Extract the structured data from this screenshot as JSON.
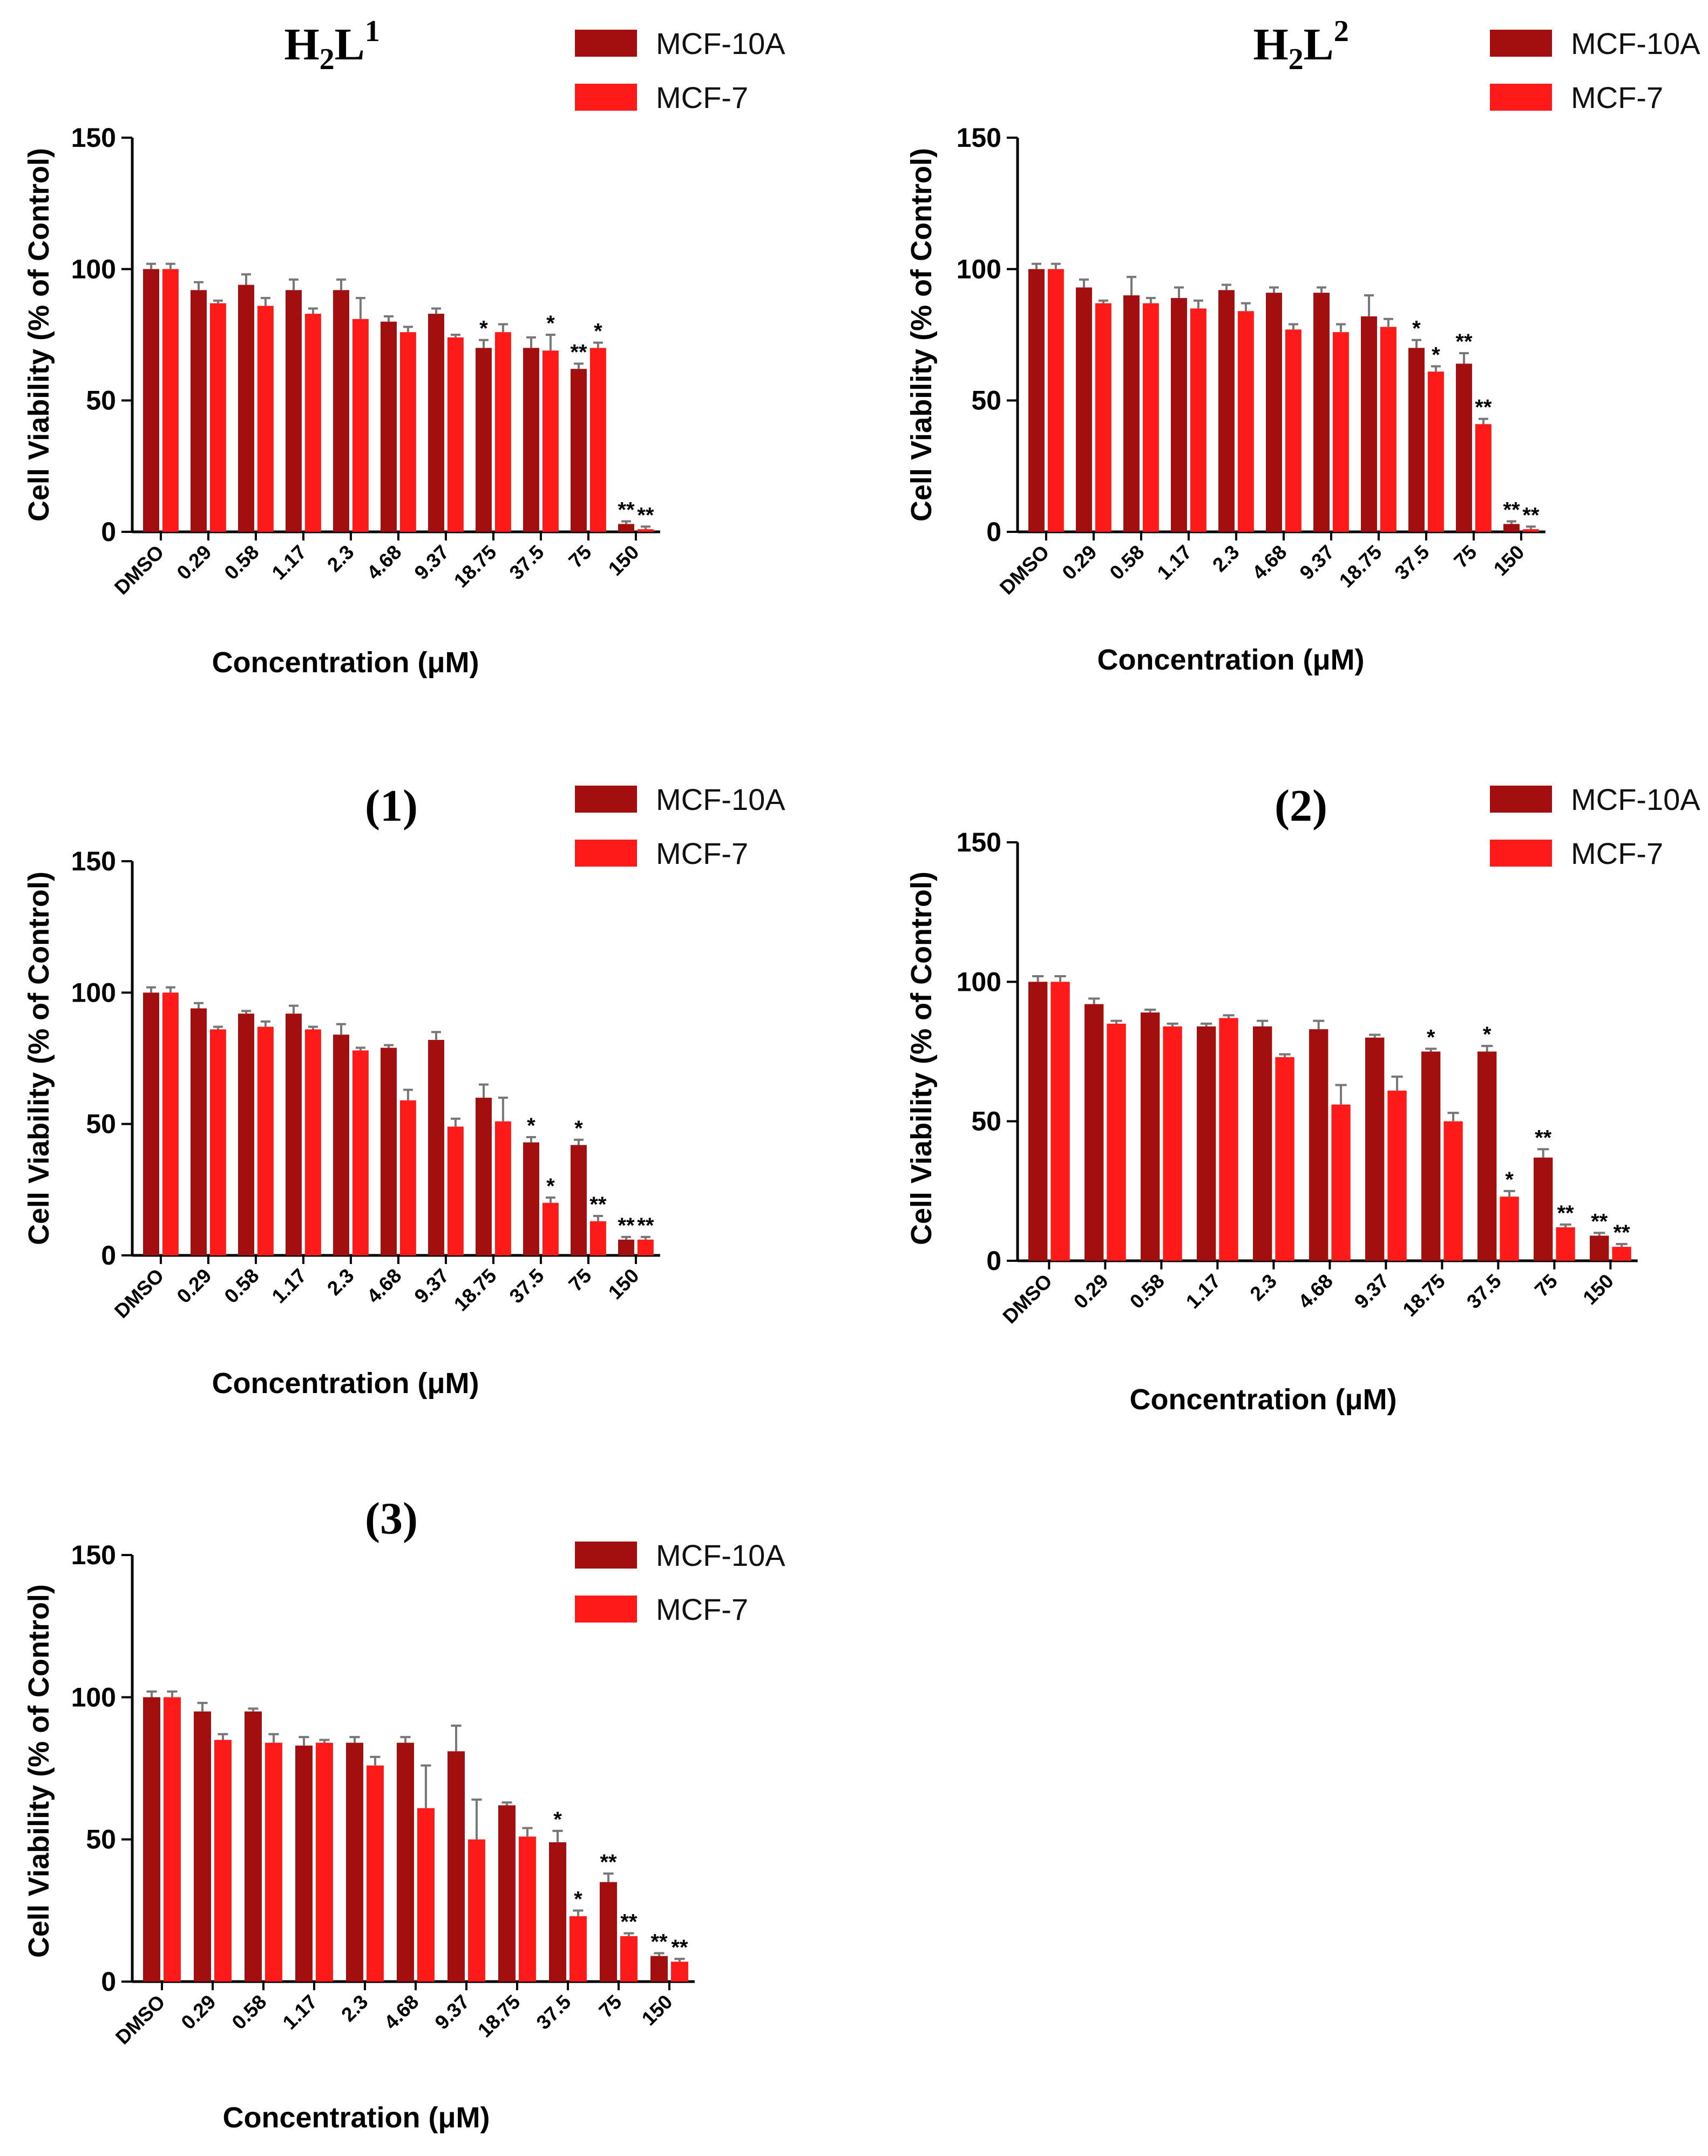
{
  "figure": {
    "x_label": "Concentration (μM)",
    "y_label": "Cell Viability (% of Control)",
    "legend": [
      "MCF-10A",
      "MCF-7"
    ],
    "colors": {
      "MCF-10A": "#a30f0f",
      "MCF-7": "#ff1a1a",
      "error_bar": "#777777"
    }
  },
  "chart_data": [
    {
      "type": "bar",
      "title": "H2L1",
      "title_main": "H",
      "title_sub": "2",
      "title_main2": "L",
      "title_sup": "1",
      "xlabel": "Concentration (μM)",
      "ylabel": "Cell Viability (% of Control)",
      "ylim": [
        0,
        150
      ],
      "yticks": [
        0,
        50,
        100,
        150
      ],
      "categories": [
        "DMSO",
        "0.29",
        "0.58",
        "1.17",
        "2.3",
        "4.68",
        "9.37",
        "18.75",
        "37.5",
        "75",
        "150"
      ],
      "series": [
        {
          "name": "MCF-10A",
          "values": [
            100,
            92,
            94,
            92,
            92,
            80,
            83,
            70,
            70,
            62,
            3
          ],
          "errors": [
            2,
            3,
            4,
            4,
            4,
            2,
            2,
            3,
            4,
            2,
            1
          ],
          "labels": [
            "",
            "",
            "",
            "",
            "",
            "",
            "",
            "*",
            "",
            "**",
            "**"
          ]
        },
        {
          "name": "MCF-7",
          "values": [
            100,
            87,
            86,
            83,
            81,
            76,
            74,
            76,
            69,
            70,
            1
          ],
          "errors": [
            2,
            1,
            3,
            2,
            8,
            2,
            1,
            3,
            6,
            2,
            1
          ],
          "labels": [
            "",
            "",
            "",
            "",
            "",
            "",
            "",
            "",
            "*",
            "*",
            "**"
          ]
        }
      ]
    },
    {
      "type": "bar",
      "title": "H2L2",
      "title_main": "H",
      "title_sub": "2",
      "title_main2": "L",
      "title_sup": "2",
      "xlabel": "Concentration (μM)",
      "ylabel": "Cell Viability (% of Control)",
      "ylim": [
        0,
        150
      ],
      "yticks": [
        0,
        50,
        100,
        150
      ],
      "categories": [
        "DMSO",
        "0.29",
        "0.58",
        "1.17",
        "2.3",
        "4.68",
        "9.37",
        "18.75",
        "37.5",
        "75",
        "150"
      ],
      "series": [
        {
          "name": "MCF-10A",
          "values": [
            100,
            93,
            90,
            89,
            92,
            91,
            91,
            82,
            70,
            64,
            3
          ],
          "errors": [
            2,
            3,
            7,
            4,
            2,
            2,
            2,
            8,
            3,
            4,
            1
          ],
          "labels": [
            "",
            "",
            "",
            "",
            "",
            "",
            "",
            "",
            "*",
            "**",
            "**"
          ]
        },
        {
          "name": "MCF-7",
          "values": [
            100,
            87,
            87,
            85,
            84,
            77,
            76,
            78,
            61,
            41,
            1
          ],
          "errors": [
            2,
            1,
            2,
            3,
            3,
            2,
            3,
            3,
            2,
            2,
            1
          ],
          "labels": [
            "",
            "",
            "",
            "",
            "",
            "",
            "",
            "",
            "*",
            "**",
            "**"
          ]
        }
      ]
    },
    {
      "type": "bar",
      "title": "(1)",
      "xlabel": "Concentration (μM)",
      "ylabel": "Cell Viability (% of Control)",
      "ylim": [
        0,
        150
      ],
      "yticks": [
        0,
        50,
        100,
        150
      ],
      "categories": [
        "DMSO",
        "0.29",
        "0.58",
        "1.17",
        "2.3",
        "4.68",
        "9.37",
        "18.75",
        "37.5",
        "75",
        "150"
      ],
      "series": [
        {
          "name": "MCF-10A",
          "values": [
            100,
            94,
            92,
            92,
            84,
            79,
            82,
            60,
            43,
            42,
            6
          ],
          "errors": [
            2,
            2,
            1,
            3,
            4,
            1,
            3,
            5,
            2,
            2,
            1
          ],
          "labels": [
            "",
            "",
            "",
            "",
            "",
            "",
            "",
            "",
            "*",
            "*",
            "**"
          ]
        },
        {
          "name": "MCF-7",
          "values": [
            100,
            86,
            87,
            86,
            78,
            59,
            49,
            51,
            20,
            13,
            6
          ],
          "errors": [
            2,
            1,
            2,
            1,
            1,
            4,
            3,
            9,
            2,
            2,
            1
          ],
          "labels": [
            "",
            "",
            "",
            "",
            "",
            "",
            "",
            "",
            "*",
            "**",
            "**"
          ]
        }
      ]
    },
    {
      "type": "bar",
      "title": "(2)",
      "xlabel": "Concentration (μM)",
      "ylabel": "Cell Viability (% of Control)",
      "ylim": [
        0,
        150
      ],
      "yticks": [
        0,
        50,
        100,
        150
      ],
      "categories": [
        "DMSO",
        "0.29",
        "0.58",
        "1.17",
        "2.3",
        "4.68",
        "9.37",
        "18.75",
        "37.5",
        "75",
        "150"
      ],
      "series": [
        {
          "name": "MCF-10A",
          "values": [
            100,
            92,
            89,
            84,
            84,
            83,
            80,
            75,
            75,
            37,
            9
          ],
          "errors": [
            2,
            2,
            1,
            1,
            2,
            3,
            1,
            1,
            2,
            3,
            1
          ],
          "labels": [
            "",
            "",
            "",
            "",
            "",
            "",
            "",
            "*",
            "*",
            "**",
            "**"
          ]
        },
        {
          "name": "MCF-7",
          "values": [
            100,
            85,
            84,
            87,
            73,
            56,
            61,
            50,
            23,
            12,
            5
          ],
          "errors": [
            2,
            1,
            1,
            1,
            1,
            7,
            5,
            3,
            2,
            1,
            1
          ],
          "labels": [
            "",
            "",
            "",
            "",
            "",
            "",
            "",
            "",
            "*",
            "**",
            "**"
          ]
        }
      ]
    },
    {
      "type": "bar",
      "title": "(3)",
      "xlabel": "Concentration (μM)",
      "ylabel": "Cell Viability (% of Control)",
      "ylim": [
        0,
        150
      ],
      "yticks": [
        0,
        50,
        100,
        150
      ],
      "categories": [
        "DMSO",
        "0.29",
        "0.58",
        "1.17",
        "2.3",
        "4.68",
        "9.37",
        "18.75",
        "37.5",
        "75",
        "150"
      ],
      "series": [
        {
          "name": "MCF-10A",
          "values": [
            100,
            95,
            95,
            83,
            84,
            84,
            81,
            62,
            49,
            35,
            9
          ],
          "errors": [
            2,
            3,
            1,
            3,
            2,
            2,
            9,
            1,
            4,
            3,
            1
          ],
          "labels": [
            "",
            "",
            "",
            "",
            "",
            "",
            "",
            "",
            "*",
            "**",
            "**"
          ]
        },
        {
          "name": "MCF-7",
          "values": [
            100,
            85,
            84,
            84,
            76,
            61,
            50,
            51,
            23,
            16,
            7
          ],
          "errors": [
            2,
            2,
            3,
            1,
            3,
            15,
            14,
            3,
            2,
            1,
            1
          ],
          "labels": [
            "",
            "",
            "",
            "",
            "",
            "",
            "",
            "",
            "*",
            "**",
            "**"
          ]
        }
      ]
    }
  ]
}
